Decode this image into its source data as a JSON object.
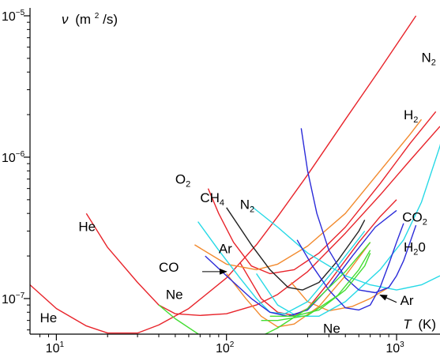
{
  "chart_data": {
    "type": "line",
    "title": "",
    "xscale": "log",
    "yscale": "log",
    "xlim": [
      7,
      1800
    ],
    "ylim": [
      5.6e-08,
      1e-05
    ],
    "grid": false,
    "legend": "none",
    "x_ticks": [
      {
        "value": 10,
        "base": "10",
        "exp": "1"
      },
      {
        "value": 100,
        "base": "10",
        "exp": "2"
      },
      {
        "value": 1000,
        "base": "10",
        "exp": "3"
      }
    ],
    "y_ticks": [
      {
        "value": 1e-07,
        "base": "10",
        "exp": "−7"
      },
      {
        "value": 1e-06,
        "base": "10",
        "exp": "−6"
      },
      {
        "value": 1e-05,
        "base": "10",
        "exp": "−5"
      }
    ],
    "xlabel": {
      "var": "T",
      "unit": "(K)"
    },
    "ylabel": {
      "var": "ν",
      "unit_open": "(m",
      "unit_exp": "2",
      "unit_close": "/s)"
    },
    "colors": {
      "red": "#e8242b",
      "orange": "#f28a2e",
      "black": "#222222",
      "cyan": "#26d9e6",
      "blue": "#2b2bd9",
      "green": "#44dd33"
    },
    "series": [
      {
        "color": "red",
        "points": [
          [
            7,
            1.25e-07
          ],
          [
            10,
            8.5e-08
          ],
          [
            15,
            6.4e-08
          ],
          [
            20,
            5.7e-08
          ],
          [
            30,
            5.7e-08
          ],
          [
            40,
            6.5e-08
          ],
          [
            60,
            8.5e-08
          ],
          [
            100,
            1.4e-07
          ],
          [
            150,
            2.4e-07
          ],
          [
            200,
            3.8e-07
          ],
          [
            300,
            7.5e-07
          ],
          [
            500,
            1.85e-06
          ],
          [
            800,
            4.2e-06
          ],
          [
            1300,
            1e-05
          ]
        ]
      },
      {
        "color": "red",
        "points": [
          [
            15,
            4e-07
          ],
          [
            20,
            2.3e-07
          ],
          [
            30,
            1.3e-07
          ],
          [
            40,
            9e-08
          ],
          [
            50,
            7.8e-08
          ],
          [
            70,
            7.6e-08
          ],
          [
            100,
            7.8e-08
          ],
          [
            150,
            9e-08
          ],
          [
            200,
            1.07e-07
          ],
          [
            300,
            1.55e-07
          ],
          [
            500,
            2.9e-07
          ],
          [
            800,
            5.4e-07
          ],
          [
            1200,
            9.5e-07
          ],
          [
            1800,
            1.65e-06
          ]
        ]
      },
      {
        "color": "red",
        "points": [
          [
            78,
            6e-07
          ],
          [
            90,
            4e-07
          ],
          [
            110,
            2.5e-07
          ],
          [
            140,
            1.7e-07
          ],
          [
            180,
            1.5e-07
          ],
          [
            250,
            1.6e-07
          ],
          [
            350,
            2.1e-07
          ],
          [
            500,
            3.2e-07
          ],
          [
            800,
            6.5e-07
          ],
          [
            1200,
            1.25e-06
          ],
          [
            1700,
            2.1e-06
          ]
        ]
      },
      {
        "color": "red",
        "points": [
          [
            120,
            1.8e-07
          ],
          [
            160,
            1e-07
          ],
          [
            200,
            8e-08
          ],
          [
            250,
            7.6e-08
          ],
          [
            300,
            8.5e-08
          ],
          [
            400,
            1.3e-07
          ],
          [
            600,
            2.5e-07
          ],
          [
            800,
            3.8e-07
          ],
          [
            1000,
            5e-07
          ]
        ]
      },
      {
        "color": "orange",
        "points": [
          [
            65,
            2.4e-07
          ],
          [
            100,
            1.75e-07
          ],
          [
            150,
            1.6e-07
          ],
          [
            200,
            1.75e-07
          ],
          [
            300,
            2.35e-07
          ],
          [
            500,
            4e-07
          ],
          [
            800,
            8e-07
          ],
          [
            1200,
            1.45e-06
          ],
          [
            1400,
            1.85e-06
          ]
        ]
      },
      {
        "color": "orange",
        "points": [
          [
            100,
            1.5e-07
          ],
          [
            130,
            1e-07
          ],
          [
            160,
            7.5e-08
          ],
          [
            200,
            6.3e-08
          ],
          [
            250,
            6.6e-08
          ],
          [
            350,
            8.8e-08
          ],
          [
            500,
            1.45e-07
          ],
          [
            700,
            2.5e-07
          ]
        ]
      },
      {
        "color": "orange",
        "points": [
          [
            240,
            1.3e-07
          ],
          [
            300,
            9.5e-08
          ],
          [
            400,
            8.2e-08
          ],
          [
            550,
            8.8e-08
          ],
          [
            700,
            1e-07
          ],
          [
            900,
            1.2e-07
          ]
        ]
      },
      {
        "color": "black",
        "points": [
          [
            100,
            4.4e-07
          ],
          [
            140,
            2.4e-07
          ],
          [
            180,
            1.6e-07
          ],
          [
            230,
            1.2e-07
          ],
          [
            280,
            1.15e-07
          ],
          [
            350,
            1.3e-07
          ],
          [
            450,
            1.85e-07
          ],
          [
            600,
            3e-07
          ],
          [
            650,
            3.6e-07
          ]
        ]
      },
      {
        "color": "cyan",
        "points": [
          [
            68,
            3.5e-07
          ],
          [
            90,
            2.2e-07
          ],
          [
            120,
            1.4e-07
          ],
          [
            150,
            1e-07
          ],
          [
            180,
            8e-08
          ],
          [
            220,
            7.8e-08
          ],
          [
            300,
            9.5e-08
          ],
          [
            450,
            1.7e-07
          ],
          [
            650,
            3e-07
          ]
        ]
      },
      {
        "color": "cyan",
        "points": [
          [
            140,
            4.5e-07
          ],
          [
            200,
            3.2e-07
          ],
          [
            300,
            2.1e-07
          ],
          [
            500,
            1.45e-07
          ],
          [
            700,
            1.25e-07
          ],
          [
            1000,
            1.15e-07
          ],
          [
            1400,
            1.25e-07
          ],
          [
            1800,
            1.45e-07
          ]
        ]
      },
      {
        "color": "cyan",
        "points": [
          [
            150,
            1.5e-07
          ],
          [
            200,
            9e-08
          ],
          [
            260,
            7.5e-08
          ],
          [
            350,
            7.5e-08
          ],
          [
            500,
            9.5e-08
          ],
          [
            800,
            1.6e-07
          ],
          [
            1100,
            2.6e-07
          ],
          [
            1400,
            4.8e-07
          ],
          [
            1800,
            1.2e-06
          ],
          [
            2000,
            2e-06
          ]
        ]
      },
      {
        "color": "blue",
        "points": [
          [
            275,
            1.6e-06
          ],
          [
            300,
            8e-07
          ],
          [
            340,
            4e-07
          ],
          [
            400,
            2.2e-07
          ],
          [
            500,
            1.4e-07
          ],
          [
            600,
            1.15e-07
          ],
          [
            750,
            1.1e-07
          ],
          [
            900,
            1.2e-07
          ],
          [
            1000,
            1.45e-07
          ],
          [
            1100,
            1.85e-07
          ],
          [
            1200,
            2.5e-07
          ],
          [
            1300,
            3.3e-07
          ]
        ]
      },
      {
        "color": "blue",
        "points": [
          [
            75,
            2e-07
          ],
          [
            100,
            1.45e-07
          ],
          [
            140,
            1e-07
          ],
          [
            180,
            8e-08
          ],
          [
            230,
            7.5e-08
          ],
          [
            300,
            8.3e-08
          ],
          [
            400,
            1.2e-07
          ],
          [
            550,
            2e-07
          ],
          [
            750,
            3.2e-07
          ],
          [
            1000,
            4.2e-07
          ]
        ]
      },
      {
        "color": "blue",
        "points": [
          [
            260,
            2.6e-07
          ],
          [
            320,
            1.7e-07
          ],
          [
            400,
            1.15e-07
          ],
          [
            500,
            8.6e-08
          ],
          [
            600,
            8.3e-08
          ],
          [
            700,
            9e-08
          ],
          [
            800,
            1.2e-07
          ],
          [
            900,
            1.75e-07
          ],
          [
            1000,
            2.5e-07
          ],
          [
            1100,
            3.4e-07
          ]
        ]
      },
      {
        "color": "green",
        "points": [
          [
            40,
            9e-08
          ],
          [
            50,
            7.2e-08
          ],
          [
            70,
            5.5e-08
          ],
          [
            100,
            4.7e-08
          ],
          [
            140,
            5e-08
          ],
          [
            200,
            6.2e-08
          ],
          [
            300,
            8.5e-08
          ],
          [
            500,
            1.55e-07
          ],
          [
            700,
            2.5e-07
          ]
        ]
      },
      {
        "color": "green",
        "points": [
          [
            160,
            7e-08
          ],
          [
            200,
            7e-08
          ],
          [
            300,
            7.6e-08
          ],
          [
            450,
            1.05e-07
          ],
          [
            600,
            1.6e-07
          ],
          [
            700,
            2.2e-07
          ]
        ]
      },
      {
        "color": "green",
        "points": [
          [
            180,
            7.5e-08
          ],
          [
            250,
            7.5e-08
          ],
          [
            350,
            8.3e-08
          ],
          [
            500,
            1.15e-07
          ],
          [
            650,
            1.7e-07
          ],
          [
            700,
            2.1e-07
          ]
        ]
      }
    ],
    "labels": [
      {
        "text": "He",
        "x": 13.5,
        "y": 3e-07
      },
      {
        "text": "He",
        "x": 8.0,
        "y": 6.8e-08
      },
      {
        "text": "Ne",
        "x": 44,
        "y": 9.9e-08
      },
      {
        "text": "Ne",
        "x": 370,
        "y": 5.7e-08
      },
      {
        "text": "O",
        "sub": "2",
        "x": 50,
        "y": 6.5e-07
      },
      {
        "text": "CH",
        "sub": "4",
        "x": 70,
        "y": 4.8e-07
      },
      {
        "text": "N",
        "sub": "2",
        "x": 120,
        "y": 4.3e-07
      },
      {
        "text": "N",
        "sub": "2",
        "x": 1400,
        "y": 4.7e-06
      },
      {
        "text": "H",
        "sub": "2",
        "x": 1100,
        "y": 1.85e-06
      },
      {
        "text": "CO",
        "sub": "2",
        "x": 1080,
        "y": 3.5e-07
      },
      {
        "text": "H",
        "sub": "2",
        "after": "0",
        "x": 1100,
        "y": 2.15e-07
      },
      {
        "text": "Ar",
        "x": 90,
        "y": 2.1e-07
      },
      {
        "text": "CO",
        "x": 40,
        "y": 1.55e-07
      },
      {
        "text": "Ar",
        "x": 1050,
        "y": 9e-08
      }
    ],
    "arrows": [
      {
        "from": [
          72,
          1.55e-07
        ],
        "to": [
          100,
          1.55e-07
        ]
      },
      {
        "from": [
          1000,
          9.4e-08
        ],
        "to": [
          800,
          1.06e-07
        ]
      }
    ]
  }
}
